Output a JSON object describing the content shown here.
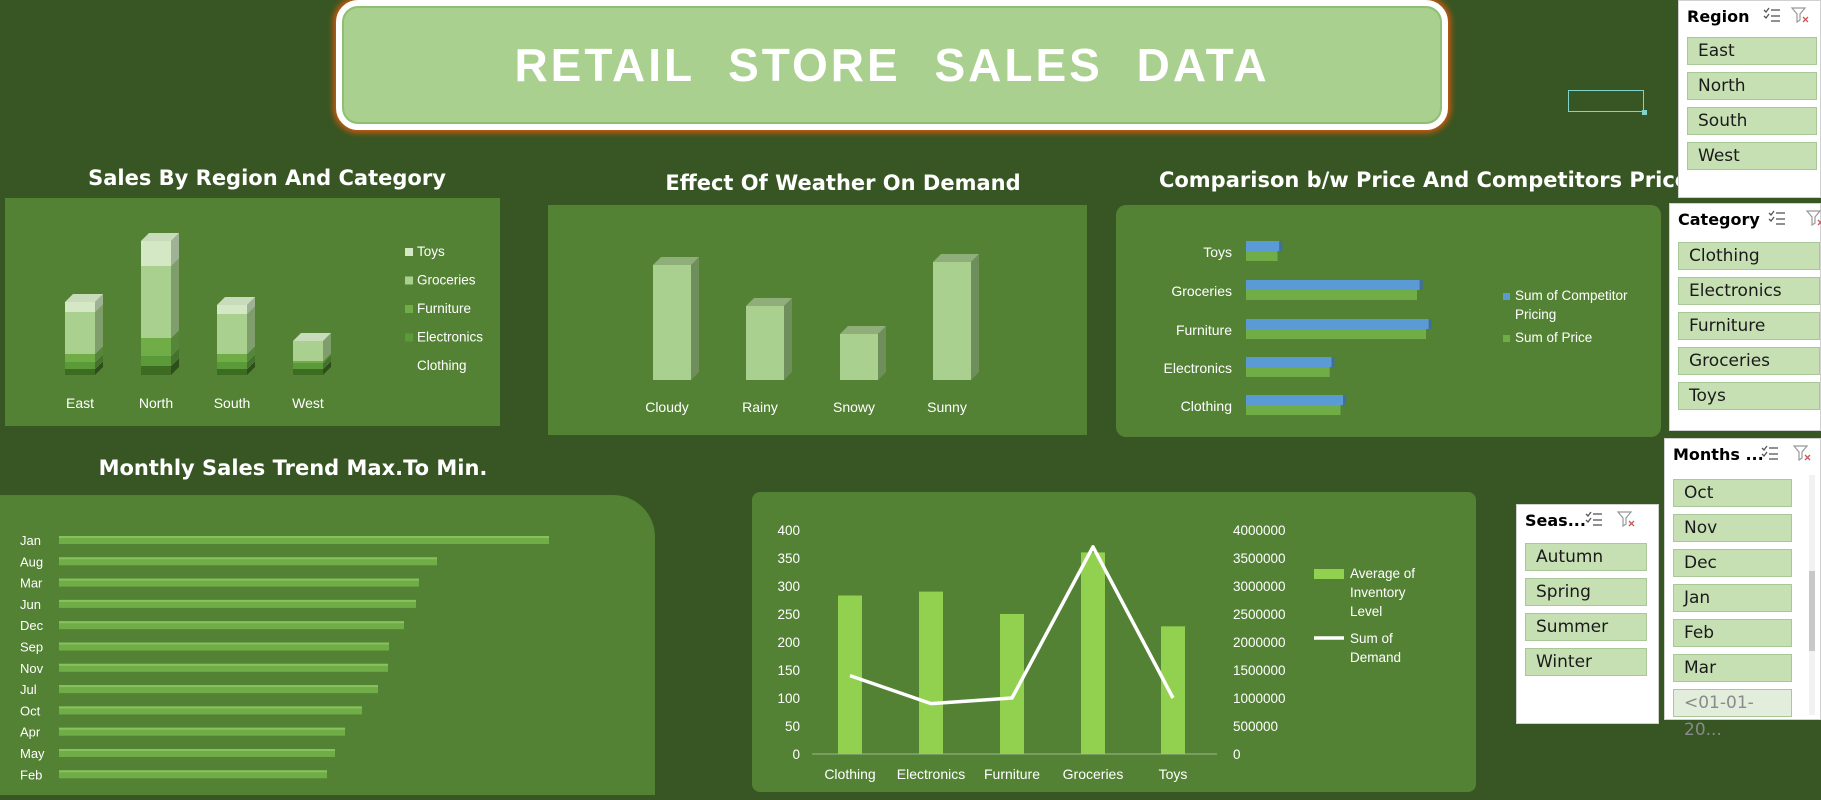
{
  "dashboard": {
    "title": "RETAIL  STORE  SALES  DATA"
  },
  "colors": {
    "background": "#375623",
    "panel": "#548235",
    "banner": "#a9d08e",
    "bar_light": "#a9d08e",
    "bar_green": "#70ad47",
    "bar_blue": "#5b9bd5",
    "slicer_item": "#c6e0b4"
  },
  "charts": {
    "region_category": {
      "title": "Sales By Region And Category"
    },
    "weather": {
      "title": "Effect Of Weather On Demand"
    },
    "price": {
      "title": "Comparison b/w Price And Competitors Price"
    },
    "monthly": {
      "title": "Monthly Sales Trend Max.To Min."
    }
  },
  "chart_data": [
    {
      "type": "bar",
      "stacked": true,
      "categories": [
        "East",
        "North",
        "South",
        "West"
      ],
      "series": [
        {
          "name": "Clothing",
          "values": [
            6,
            9,
            6,
            6
          ]
        },
        {
          "name": "Electronics",
          "values": [
            7,
            10,
            7,
            6
          ]
        },
        {
          "name": "Furniture",
          "values": [
            8,
            18,
            8,
            2
          ]
        },
        {
          "name": "Groceries",
          "values": [
            42,
            72,
            40,
            20
          ]
        },
        {
          "name": "Toys",
          "values": [
            10,
            25,
            9,
            0
          ]
        }
      ],
      "legend_order": [
        "Toys",
        "Groceries",
        "Furniture",
        "Electronics",
        "Clothing"
      ],
      "legend": "right"
    },
    {
      "type": "bar",
      "categories": [
        "Cloudy",
        "Rainy",
        "Snowy",
        "Sunny"
      ],
      "values": [
        115,
        74,
        46,
        118
      ]
    },
    {
      "type": "bar",
      "orientation": "horizontal",
      "categories": [
        "Clothing",
        "Electronics",
        "Furniture",
        "Groceries",
        "Toys"
      ],
      "series": [
        {
          "name": "Sum of Price",
          "values": [
            105,
            93,
            200,
            190,
            35
          ]
        },
        {
          "name": "Sum of Competitor Pricing",
          "values": [
            108,
            95,
            203,
            193,
            37
          ]
        }
      ],
      "legend_order": [
        "Sum of Competitor Pricing",
        "Sum of Price"
      ],
      "legend": "right"
    },
    {
      "type": "bar",
      "orientation": "horizontal",
      "categories": [
        "Jan",
        "Aug",
        "Mar",
        "Jun",
        "Dec",
        "Sep",
        "Nov",
        "Jul",
        "Oct",
        "Apr",
        "May",
        "Feb"
      ],
      "values": [
        490,
        378,
        360,
        357,
        345,
        330,
        329,
        319,
        303,
        286,
        276,
        268
      ]
    },
    {
      "type": "bar",
      "categories": [
        "Clothing",
        "Electronics",
        "Furniture",
        "Groceries",
        "Toys"
      ],
      "series": [
        {
          "name": "Average of Inventory Level",
          "values": [
            283,
            290,
            250,
            360,
            228
          ]
        },
        {
          "name": "Sum of Demand",
          "values": [
            1400000,
            900000,
            1000000,
            3700000,
            1000000
          ],
          "type": "line",
          "axis": "secondary"
        }
      ],
      "y_ticks": [
        "0",
        "50",
        "100",
        "150",
        "200",
        "250",
        "300",
        "350",
        "400"
      ],
      "y2_ticks": [
        "0",
        "500000",
        "1000000",
        "1500000",
        "2000000",
        "2500000",
        "3000000",
        "3500000",
        "4000000"
      ],
      "ylim": [
        0,
        400
      ],
      "y2lim": [
        0,
        4000000
      ],
      "legend": "right"
    }
  ],
  "slicers": {
    "region": {
      "title": "Region",
      "items": [
        "East",
        "North",
        "South",
        "West"
      ]
    },
    "category": {
      "title": "Category",
      "items": [
        "Clothing",
        "Electronics",
        "Furniture",
        "Groceries",
        "Toys"
      ]
    },
    "months": {
      "title": "Months ...",
      "items": [
        "Oct",
        "Nov",
        "Dec",
        "Jan",
        "Feb",
        "Mar",
        "<01-01-20..."
      ]
    },
    "season": {
      "title": "Seas...",
      "items": [
        "Autumn",
        "Spring",
        "Summer",
        "Winter"
      ]
    }
  },
  "icons": {
    "multi_select": "multi-select-icon",
    "clear_filter": "clear-filter-icon"
  }
}
